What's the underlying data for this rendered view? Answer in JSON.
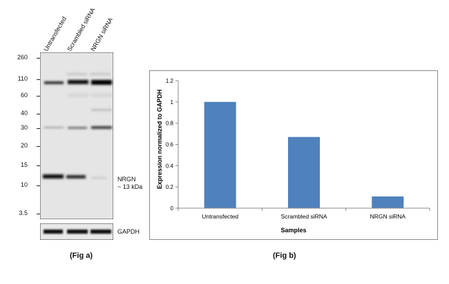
{
  "fig_a": {
    "caption": "(Fig a)",
    "lanes": [
      "Untransfected",
      "Scrambled siRNA",
      "NRGN siRNA"
    ],
    "markers": [
      "260",
      "110",
      "60",
      "40",
      "30",
      "20",
      "15",
      "10",
      "3.5"
    ],
    "band_label": "NRGN",
    "band_size": "~ 13 kDa",
    "loading_control": "GAPDH"
  },
  "fig_b": {
    "caption": "(Fig b)"
  },
  "chart_data": {
    "type": "bar",
    "categories": [
      "Untransfected",
      "Scrambled siRNA",
      "NRGN siRNA"
    ],
    "values": [
      1.0,
      0.67,
      0.11
    ],
    "title": "",
    "xlabel": "Samples",
    "ylabel": "Expression normalized to GAPDH",
    "ylim": [
      0,
      1.2
    ],
    "yticks": [
      "0",
      "0.2",
      "0.4",
      "0.6",
      "0.8",
      "1",
      "1.2"
    ],
    "bar_color": "#4F81BD",
    "grid": false,
    "legend": "none"
  }
}
